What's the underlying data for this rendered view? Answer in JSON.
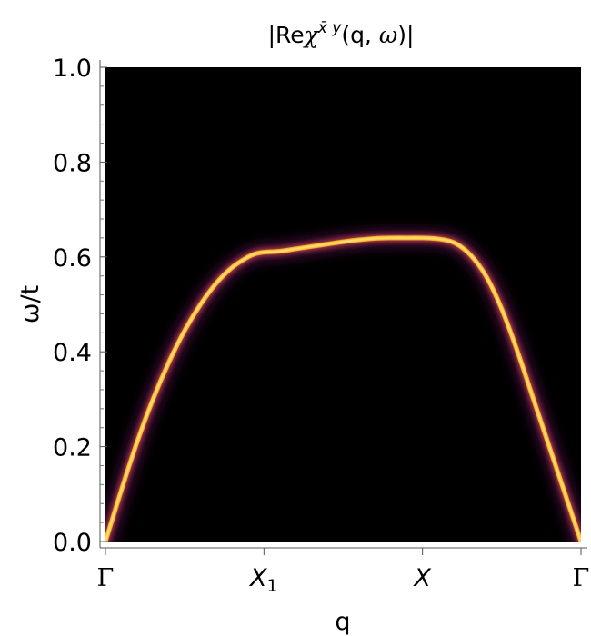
{
  "chart_data": {
    "type": "heatmap",
    "title_parts": {
      "open": "|Re",
      "chi": "χ",
      "sup": "x̄ y",
      "args": "(q, ",
      "omega": "ω",
      "close": ")|"
    },
    "xlabel": "q",
    "ylabel": "ω/t",
    "ylim": [
      0,
      1.0
    ],
    "y_ticks": [
      "0.0",
      "0.2",
      "0.4",
      "0.6",
      "0.8",
      "1.0"
    ],
    "y_tick_values": [
      0,
      0.2,
      0.4,
      0.6,
      0.8,
      1.0
    ],
    "x_ticks": [
      {
        "label": "Γ",
        "pos": 0
      },
      {
        "label": "X",
        "sub": "1",
        "pos": 1
      },
      {
        "label": "X",
        "pos": 2
      },
      {
        "label": "Γ",
        "pos": 3
      }
    ],
    "colormap": [
      "#000000",
      "#1b0c41",
      "#4a0c6b",
      "#781c6d",
      "#a52c60",
      "#cf4446",
      "#ed6925",
      "#fb9b06",
      "#f7d13d",
      "#fcffa4"
    ],
    "background_color": "#000000",
    "dispersion": {
      "x": [
        0.0,
        0.1,
        0.2,
        0.3,
        0.4,
        0.5,
        0.6,
        0.7,
        0.8,
        0.9,
        0.95,
        1.0,
        1.1,
        1.2,
        1.3,
        1.4,
        1.5,
        1.6,
        1.7,
        1.8,
        1.9,
        2.0,
        2.1,
        2.2,
        2.3,
        2.4,
        2.5,
        2.6,
        2.7,
        2.8,
        2.9,
        3.0
      ],
      "omega": [
        0.0,
        0.108,
        0.21,
        0.3,
        0.378,
        0.445,
        0.5,
        0.545,
        0.578,
        0.6,
        0.607,
        0.61,
        0.612,
        0.617,
        0.622,
        0.627,
        0.632,
        0.636,
        0.639,
        0.64,
        0.64,
        0.64,
        0.638,
        0.63,
        0.605,
        0.56,
        0.49,
        0.4,
        0.3,
        0.2,
        0.1,
        0.0
      ]
    }
  }
}
